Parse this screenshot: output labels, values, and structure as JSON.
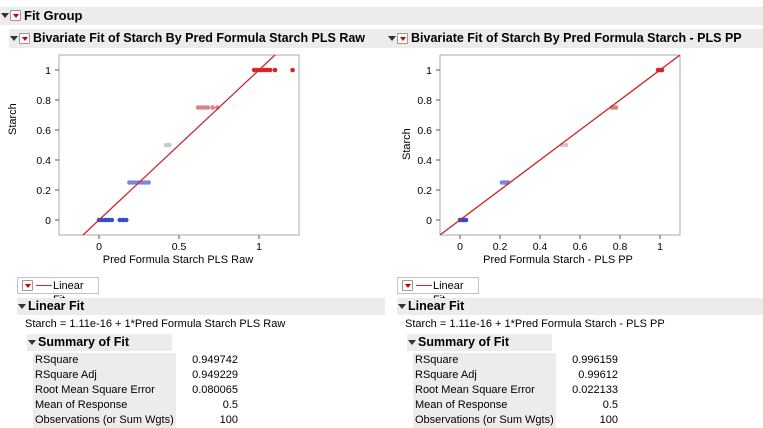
{
  "fit_group": {
    "title": "Fit Group"
  },
  "left": {
    "title": "Bivariate Fit of Starch By Pred Formula Starch PLS Raw",
    "ylabel": "Starch",
    "xlabel": "Pred Formula Starch PLS Raw",
    "legend_label": "Linear Fit",
    "linear_fit_title": "Linear Fit",
    "equation": "Starch = 1.11e-16 + 1*Pred Formula Starch PLS Raw",
    "summary_title": "Summary of Fit",
    "summary": [
      {
        "label": "RSquare",
        "value": "0.949742"
      },
      {
        "label": "RSquare Adj",
        "value": "0.949229"
      },
      {
        "label": "Root Mean Square Error",
        "value": "0.080065"
      },
      {
        "label": "Mean of Response",
        "value": "0.5"
      },
      {
        "label": "Observations (or Sum Wgts)",
        "value": "100"
      }
    ]
  },
  "right": {
    "title": "Bivariate Fit of Starch By Pred Formula Starch - PLS PP",
    "ylabel": "Starch",
    "xlabel": "Pred Formula Starch - PLS PP",
    "legend_label": "Linear Fit",
    "linear_fit_title": "Linear Fit",
    "equation": "Starch = 1.11e-16 + 1*Pred Formula Starch - PLS PP",
    "summary_title": "Summary of Fit",
    "summary": [
      {
        "label": "RSquare",
        "value": "0.996159"
      },
      {
        "label": "RSquare Adj",
        "value": "0.99612"
      },
      {
        "label": "Root Mean Square Error",
        "value": "0.022133"
      },
      {
        "label": "Mean of Response",
        "value": "0.5"
      },
      {
        "label": "Observations (or Sum Wgts)",
        "value": "100"
      }
    ]
  },
  "colors": {
    "fit_line": "#cc2a2a",
    "starch_0": "#2c4bd6",
    "starch_025": "#7b88d8",
    "starch_05": "#c8c8c8",
    "starch_075": "#dc8080",
    "starch_1": "#e02020"
  },
  "chart_data": [
    {
      "type": "scatter",
      "title": "Bivariate Fit of Starch By Pred Formula Starch PLS Raw",
      "xlabel": "Pred Formula Starch PLS Raw",
      "ylabel": "Starch",
      "xlim": [
        -0.25,
        1.25
      ],
      "ylim": [
        -0.1,
        1.1
      ],
      "xticks": [
        "0",
        "0.5",
        "1"
      ],
      "xtick_values": [
        0,
        0.5,
        1
      ],
      "yticks": [
        "0",
        "0.2",
        "0.4",
        "0.6",
        "0.8",
        "1"
      ],
      "ytick_values": [
        0,
        0.2,
        0.4,
        0.6,
        0.8,
        1
      ],
      "fit": {
        "intercept": 0,
        "slope": 1
      },
      "groups": [
        {
          "y": 0,
          "x": [
            0.0,
            0.02,
            0.04,
            0.06,
            0.08,
            0.13,
            0.15,
            0.17
          ]
        },
        {
          "y": 0.25,
          "x": [
            0.19,
            0.21,
            0.23,
            0.25,
            0.27,
            0.29,
            0.31
          ]
        },
        {
          "y": 0.5,
          "x": [
            0.42,
            0.44
          ]
        },
        {
          "y": 0.75,
          "x": [
            0.62,
            0.64,
            0.66,
            0.68,
            0.71,
            0.74
          ]
        },
        {
          "y": 1,
          "x": [
            0.97,
            0.99,
            1.01,
            1.03,
            1.05,
            1.07,
            1.1,
            1.21
          ]
        }
      ]
    },
    {
      "type": "scatter",
      "title": "Bivariate Fit of Starch By Pred Formula Starch - PLS PP",
      "xlabel": "Pred Formula Starch - PLS PP",
      "ylabel": "Starch",
      "xlim": [
        -0.1,
        1.1
      ],
      "ylim": [
        -0.1,
        1.1
      ],
      "xticks": [
        "0",
        "0.2",
        "0.4",
        "0.6",
        "0.8",
        "1"
      ],
      "xtick_values": [
        0,
        0.2,
        0.4,
        0.6,
        0.8,
        1
      ],
      "yticks": [
        "0",
        "0.2",
        "0.4",
        "0.6",
        "0.8",
        "1"
      ],
      "ytick_values": [
        0,
        0.2,
        0.4,
        0.6,
        0.8,
        1
      ],
      "fit": {
        "intercept": 0,
        "slope": 1
      },
      "groups": [
        {
          "y": 0,
          "x": [
            0.0,
            0.01,
            0.02,
            0.03
          ]
        },
        {
          "y": 0.25,
          "x": [
            0.21,
            0.22,
            0.23,
            0.24
          ]
        },
        {
          "y": 0.5,
          "x": [
            0.51,
            0.53
          ]
        },
        {
          "y": 0.75,
          "x": [
            0.76,
            0.77,
            0.78
          ]
        },
        {
          "y": 1,
          "x": [
            0.99,
            1.0,
            1.01
          ]
        }
      ]
    }
  ]
}
